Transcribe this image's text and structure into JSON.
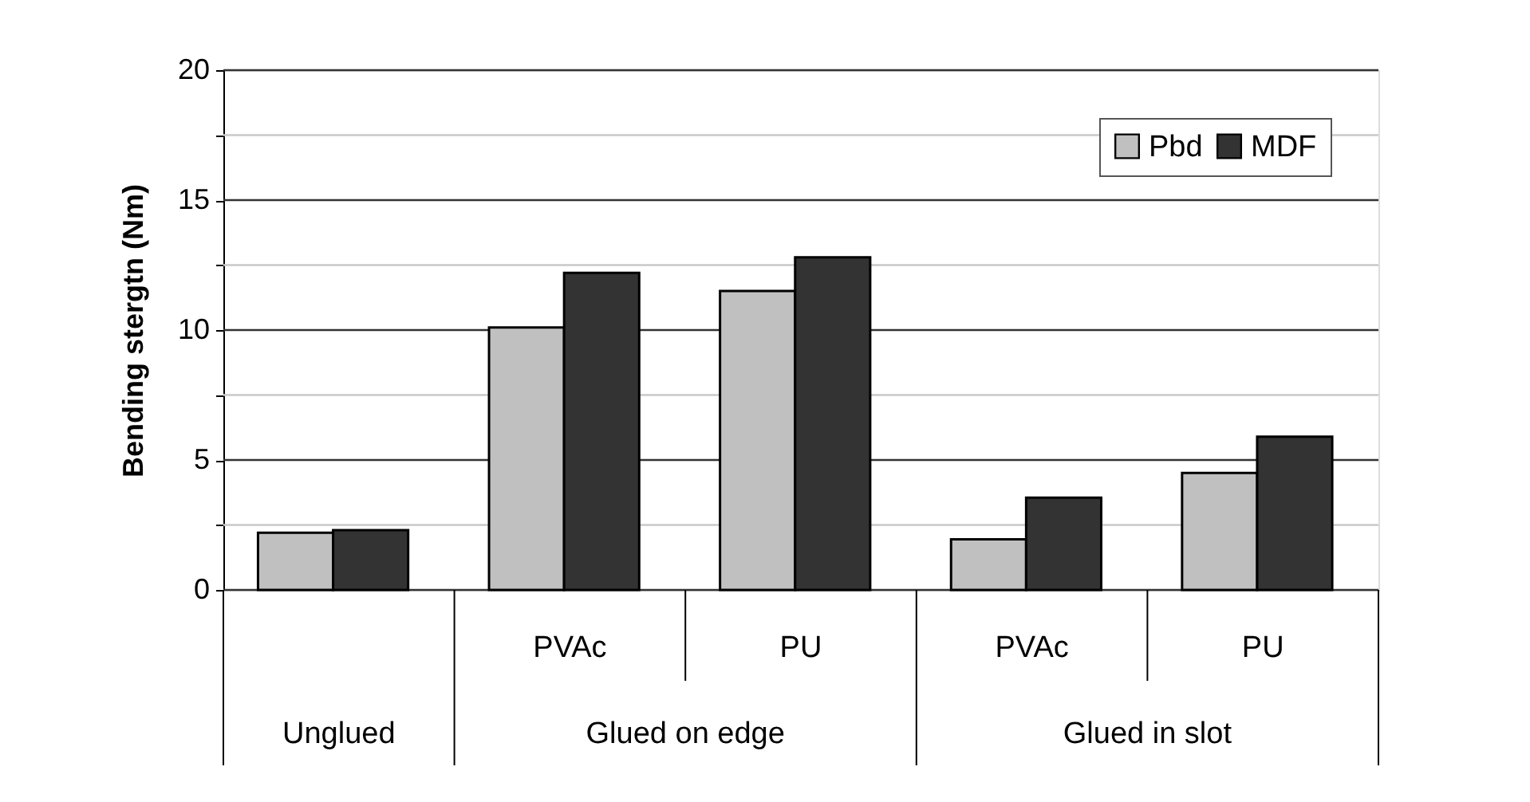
{
  "chart_data": {
    "type": "bar",
    "ylabel": "Bending stergtn (Nm)",
    "categories": [
      null,
      "PVAc",
      "PU",
      "PVAc",
      "PU"
    ],
    "annotations": [
      "Unglued",
      "Glued on edge",
      "Glued in slot"
    ],
    "series": [
      {
        "name": "Pbd",
        "color": "#c0c0c0",
        "values": [
          2.2,
          10.1,
          11.5,
          1.95,
          4.5
        ]
      },
      {
        "name": "MDF",
        "color": "#333333",
        "values": [
          2.3,
          12.2,
          12.8,
          3.55,
          5.9
        ]
      }
    ],
    "ylim": [
      0,
      20
    ],
    "yticks": [
      0,
      {
        "value": 2.5,
        "label": null
      },
      5,
      {
        "value": 7.5,
        "label": null
      },
      10,
      {
        "value": 12.5,
        "label": null
      },
      15,
      {
        "value": 17.5,
        "label": null
      },
      20
    ],
    "grid": true,
    "legend": "top right"
  }
}
